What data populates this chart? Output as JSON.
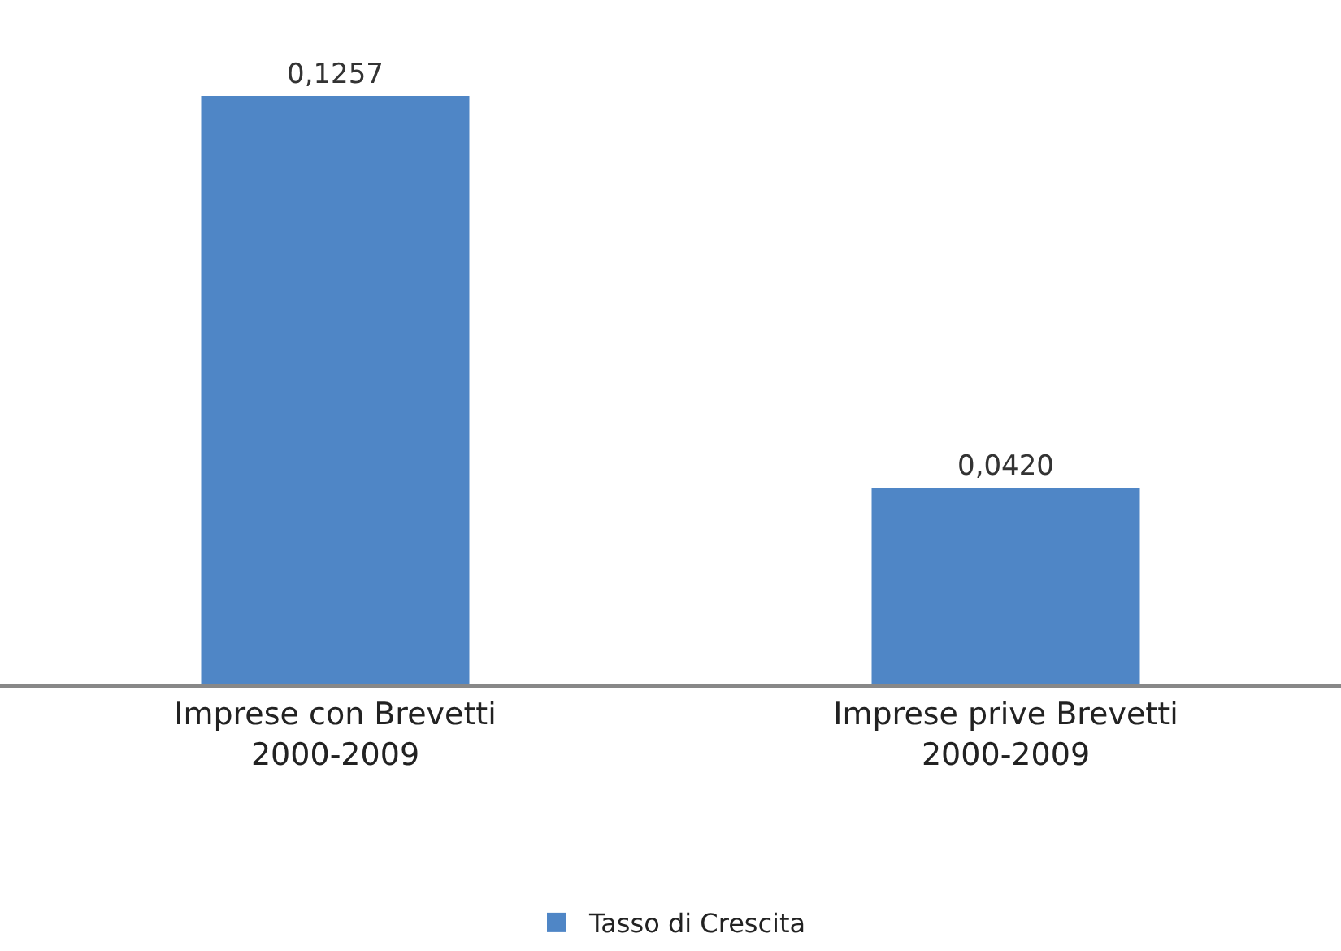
{
  "chart_data": {
    "type": "bar",
    "categories": [
      "Imprese con Brevetti\n2000-2009",
      "Imprese prive Brevetti\n2000-2009"
    ],
    "series": [
      {
        "name": "Tasso di Crescita",
        "color": "#4f86c6",
        "values": [
          0.1257,
          0.042
        ],
        "value_labels": [
          "0,1257",
          "0,0420"
        ]
      }
    ],
    "legend": "bottom"
  }
}
